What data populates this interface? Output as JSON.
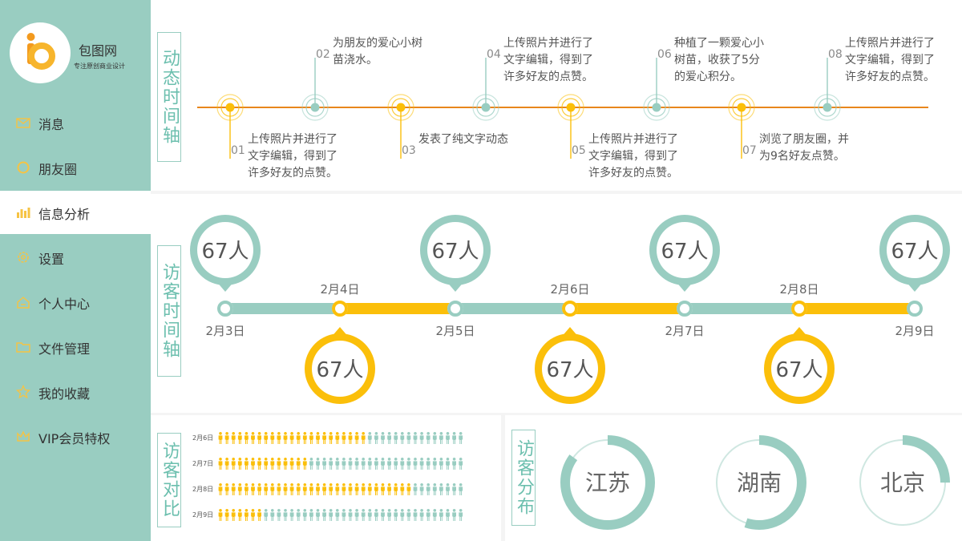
{
  "brand": {
    "name": "包图网",
    "tagline": "专注原创商业设计"
  },
  "nav": [
    {
      "label": "消息",
      "icon": "envelope-icon"
    },
    {
      "label": "朋友圈",
      "icon": "circle-icon"
    },
    {
      "label": "信息分析",
      "icon": "bar-chart-icon",
      "active": true
    },
    {
      "label": "设置",
      "icon": "gear-icon"
    },
    {
      "label": "个人中心",
      "icon": "home-icon"
    },
    {
      "label": "文件管理",
      "icon": "folder-icon"
    },
    {
      "label": "我的收藏",
      "icon": "star-icon"
    },
    {
      "label": "VIP会员特权",
      "icon": "crown-icon"
    }
  ],
  "feed": {
    "title": "动态时间轴",
    "events": [
      {
        "num": "01",
        "text": [
          "上传照片并进行了",
          "文字编辑，得到了",
          "许多好友的点赞。"
        ]
      },
      {
        "num": "02",
        "text": [
          "为朋友的爱心小树",
          "苗浇水。"
        ]
      },
      {
        "num": "03",
        "text": [
          "发表了纯文字动态"
        ]
      },
      {
        "num": "04",
        "text": [
          "上传照片并进行了",
          "文字编辑，得到了",
          "许多好友的点赞。"
        ]
      },
      {
        "num": "05",
        "text": [
          "上传照片并进行了",
          "文字编辑，得到了",
          "许多好友的点赞。"
        ]
      },
      {
        "num": "06",
        "text": [
          "种植了一颗爱心小",
          "树苗，收获了5分",
          "的爱心积分。"
        ]
      },
      {
        "num": "07",
        "text": [
          "浏览了朋友圈，并",
          "为9名好友点赞。"
        ]
      },
      {
        "num": "08",
        "text": [
          "上传照片并进行了",
          "文字编辑，得到了",
          "许多好友的点赞。"
        ]
      }
    ]
  },
  "visitors": {
    "title": "访客时间轴",
    "points": [
      {
        "date": "2月3日",
        "count": "67人"
      },
      {
        "date": "2月4日",
        "count": "67人"
      },
      {
        "date": "2月5日",
        "count": "67人"
      },
      {
        "date": "2月6日",
        "count": "67人"
      },
      {
        "date": "2月7日",
        "count": "67人"
      },
      {
        "date": "2月8日",
        "count": "67人"
      },
      {
        "date": "2月9日",
        "count": "67人"
      }
    ]
  },
  "compare": {
    "title": "访客对比",
    "total_icons": 38,
    "rows": [
      {
        "label": "2月6日",
        "filled": 23
      },
      {
        "label": "2月7日",
        "filled": 14
      },
      {
        "label": "2月8日",
        "filled": 30
      },
      {
        "label": "2月9日",
        "filled": 7
      }
    ]
  },
  "distribution": {
    "title": "访客分布",
    "regions": [
      {
        "name": "江苏",
        "fraction": 0.85
      },
      {
        "name": "湖南",
        "fraction": 0.55
      },
      {
        "name": "北京",
        "fraction": 0.25
      }
    ]
  },
  "colors": {
    "teal": "#99cdc1",
    "teal_dark": "#6cbfae",
    "yellow": "#fbbf0a",
    "orange_line": "#e8861c",
    "sidebar": "#99cdc1"
  }
}
